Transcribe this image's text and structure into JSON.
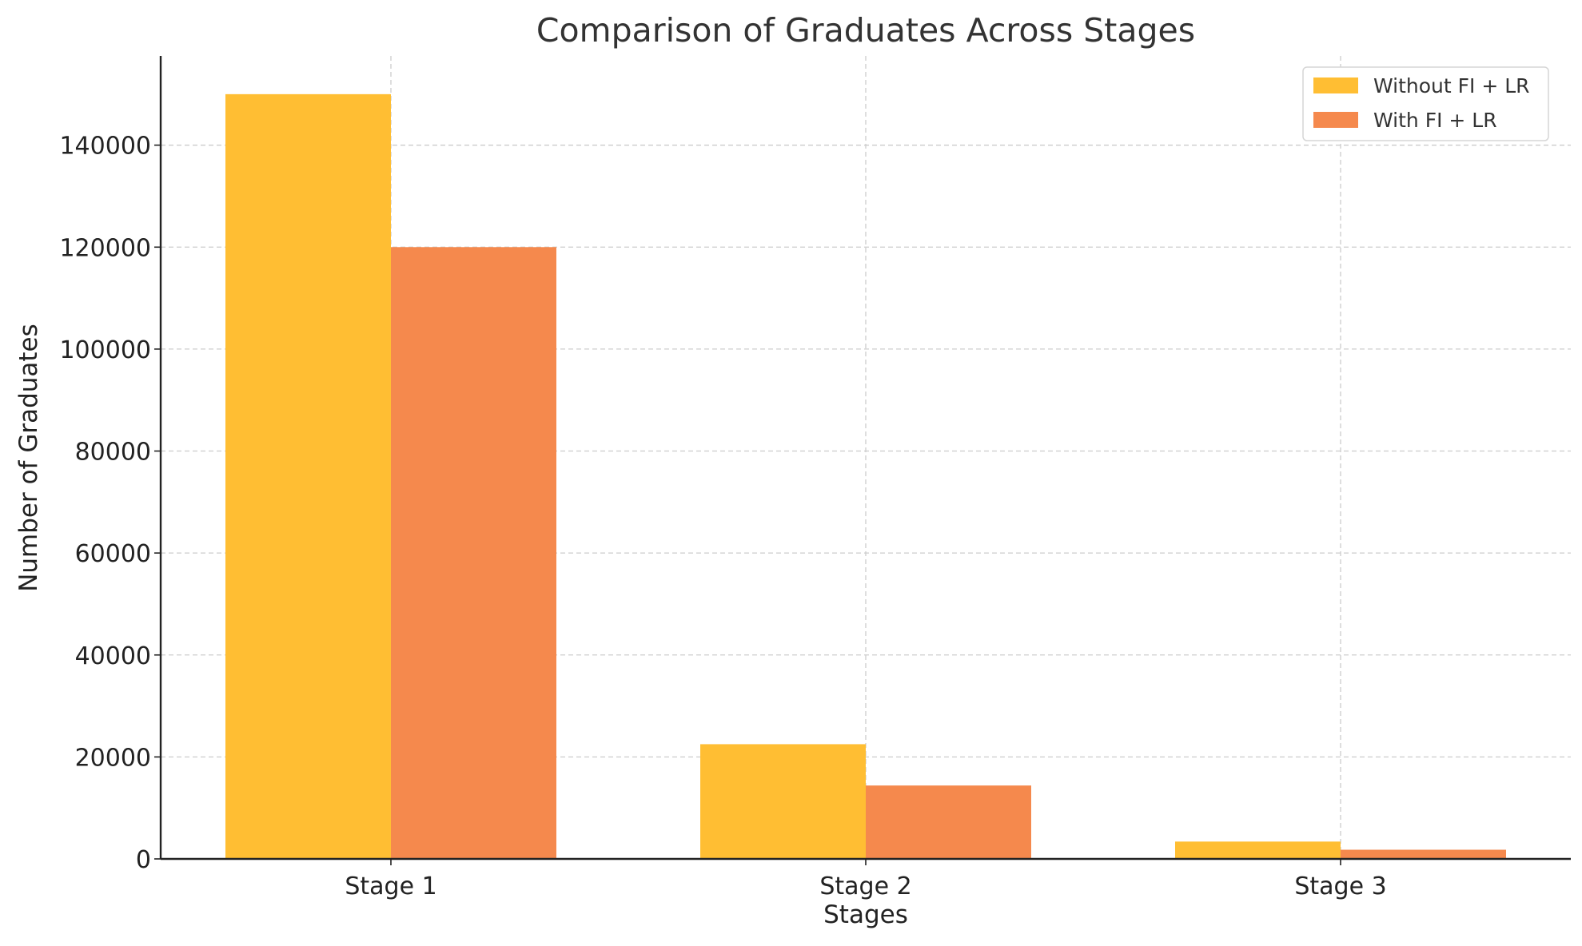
{
  "chart_data": {
    "type": "bar",
    "title": "Comparison of Graduates Across Stages",
    "xlabel": "Stages",
    "ylabel": "Number of Graduates",
    "categories": [
      "Stage 1",
      "Stage 2",
      "Stage 3"
    ],
    "series": [
      {
        "name": "Without FI + LR",
        "values": [
          150000,
          22500,
          3400
        ],
        "color": "#FFBE33"
      },
      {
        "name": "With FI + LR",
        "values": [
          120000,
          14400,
          1800
        ],
        "color": "#F5894D"
      }
    ],
    "ylim": [
      0,
      157500
    ],
    "yticks": [
      0,
      20000,
      40000,
      60000,
      80000,
      100000,
      120000,
      140000
    ],
    "ytick_labels": [
      "0",
      "20000",
      "40000",
      "60000",
      "80000",
      "100000",
      "120000",
      "140000"
    ],
    "grid": true,
    "legend_position": "top-right"
  }
}
